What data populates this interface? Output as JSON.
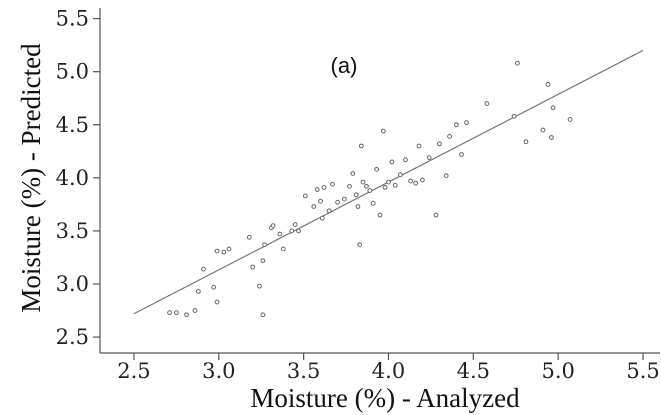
{
  "chart_data": {
    "type": "scatter",
    "title": "",
    "annotation": "(a)",
    "xlabel": "Moisture (%) - Analyzed",
    "ylabel": "Moisture (%) - Predicted",
    "xlim": [
      2.3,
      5.6
    ],
    "ylim": [
      2.35,
      5.6
    ],
    "xticks": [
      "2.5",
      "3.0",
      "3.5",
      "4.0",
      "4.5",
      "5.0",
      "5.5"
    ],
    "yticks": [
      "2.5",
      "3.0",
      "3.5",
      "4.0",
      "4.5",
      "5.0",
      "5.5"
    ],
    "grid": false,
    "legend": "none",
    "colors": {
      "points": "#666666",
      "fit_line": "#777777",
      "axes": "#555555"
    },
    "fit_line": {
      "x": [
        2.5,
        5.5
      ],
      "y": [
        2.72,
        5.2
      ]
    },
    "points": [
      {
        "x": 2.71,
        "y": 2.73
      },
      {
        "x": 2.75,
        "y": 2.73
      },
      {
        "x": 2.81,
        "y": 2.71
      },
      {
        "x": 2.86,
        "y": 2.75
      },
      {
        "x": 2.88,
        "y": 2.93
      },
      {
        "x": 2.91,
        "y": 3.14
      },
      {
        "x": 2.97,
        "y": 2.97
      },
      {
        "x": 2.99,
        "y": 2.83
      },
      {
        "x": 2.99,
        "y": 3.31
      },
      {
        "x": 3.03,
        "y": 3.3
      },
      {
        "x": 3.06,
        "y": 3.33
      },
      {
        "x": 3.18,
        "y": 3.44
      },
      {
        "x": 3.2,
        "y": 3.16
      },
      {
        "x": 3.24,
        "y": 2.98
      },
      {
        "x": 3.26,
        "y": 2.71
      },
      {
        "x": 3.26,
        "y": 3.22
      },
      {
        "x": 3.27,
        "y": 3.37
      },
      {
        "x": 3.31,
        "y": 3.53
      },
      {
        "x": 3.32,
        "y": 3.55
      },
      {
        "x": 3.36,
        "y": 3.47
      },
      {
        "x": 3.38,
        "y": 3.33
      },
      {
        "x": 3.43,
        "y": 3.5
      },
      {
        "x": 3.45,
        "y": 3.56
      },
      {
        "x": 3.47,
        "y": 3.5
      },
      {
        "x": 3.51,
        "y": 3.83
      },
      {
        "x": 3.56,
        "y": 3.73
      },
      {
        "x": 3.58,
        "y": 3.89
      },
      {
        "x": 3.6,
        "y": 3.78
      },
      {
        "x": 3.61,
        "y": 3.62
      },
      {
        "x": 3.62,
        "y": 3.91
      },
      {
        "x": 3.65,
        "y": 3.69
      },
      {
        "x": 3.67,
        "y": 3.94
      },
      {
        "x": 3.7,
        "y": 3.77
      },
      {
        "x": 3.74,
        "y": 3.8
      },
      {
        "x": 3.77,
        "y": 3.92
      },
      {
        "x": 3.79,
        "y": 4.04
      },
      {
        "x": 3.81,
        "y": 3.84
      },
      {
        "x": 3.82,
        "y": 3.73
      },
      {
        "x": 3.83,
        "y": 3.37
      },
      {
        "x": 3.84,
        "y": 4.3
      },
      {
        "x": 3.85,
        "y": 3.96
      },
      {
        "x": 3.87,
        "y": 3.92
      },
      {
        "x": 3.89,
        "y": 3.88
      },
      {
        "x": 3.91,
        "y": 3.76
      },
      {
        "x": 3.93,
        "y": 4.08
      },
      {
        "x": 3.95,
        "y": 3.65
      },
      {
        "x": 3.97,
        "y": 4.44
      },
      {
        "x": 3.98,
        "y": 3.91
      },
      {
        "x": 4.0,
        "y": 3.96
      },
      {
        "x": 4.02,
        "y": 4.15
      },
      {
        "x": 4.04,
        "y": 3.93
      },
      {
        "x": 4.07,
        "y": 4.03
      },
      {
        "x": 4.1,
        "y": 4.17
      },
      {
        "x": 4.13,
        "y": 3.97
      },
      {
        "x": 4.16,
        "y": 3.95
      },
      {
        "x": 4.18,
        "y": 4.3
      },
      {
        "x": 4.2,
        "y": 3.98
      },
      {
        "x": 4.24,
        "y": 4.19
      },
      {
        "x": 4.28,
        "y": 3.65
      },
      {
        "x": 4.3,
        "y": 4.32
      },
      {
        "x": 4.34,
        "y": 4.02
      },
      {
        "x": 4.36,
        "y": 4.39
      },
      {
        "x": 4.4,
        "y": 4.5
      },
      {
        "x": 4.43,
        "y": 4.22
      },
      {
        "x": 4.46,
        "y": 4.52
      },
      {
        "x": 4.58,
        "y": 4.7
      },
      {
        "x": 4.74,
        "y": 4.58
      },
      {
        "x": 4.76,
        "y": 5.08
      },
      {
        "x": 4.81,
        "y": 4.34
      },
      {
        "x": 4.91,
        "y": 4.45
      },
      {
        "x": 4.94,
        "y": 4.88
      },
      {
        "x": 4.96,
        "y": 4.38
      },
      {
        "x": 4.97,
        "y": 4.66
      },
      {
        "x": 5.07,
        "y": 4.55
      }
    ]
  }
}
